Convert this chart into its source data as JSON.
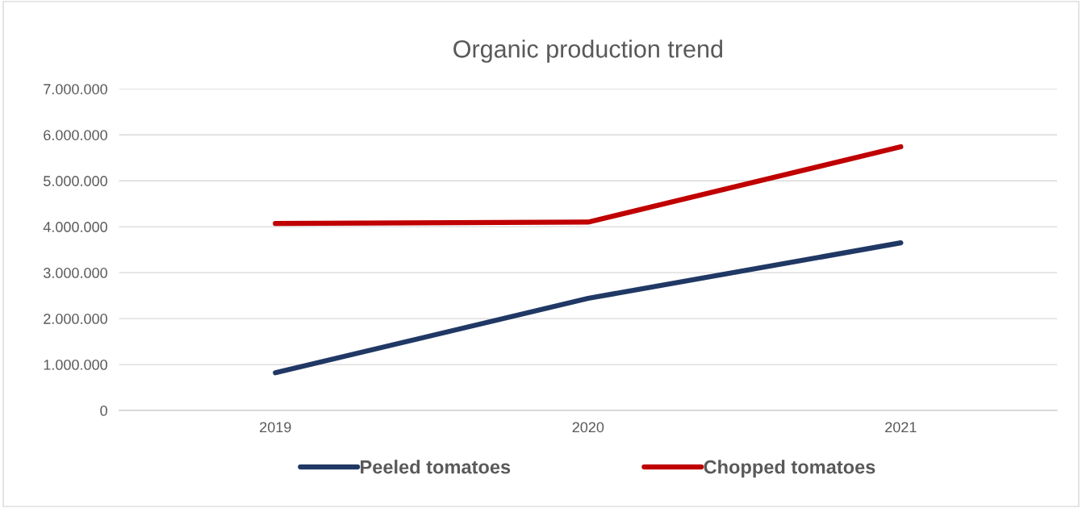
{
  "chart_data": {
    "type": "line",
    "title": "Organic production trend",
    "categories": [
      "2019",
      "2020",
      "2021"
    ],
    "series": [
      {
        "name": "Peeled tomatoes",
        "color": "#203864",
        "values": [
          820000,
          2440000,
          3650000
        ]
      },
      {
        "name": "Chopped tomatoes",
        "color": "#c00000",
        "values": [
          4070000,
          4100000,
          5740000
        ]
      }
    ],
    "ylim": [
      0,
      7000000
    ],
    "yticks": [
      {
        "value": 0,
        "label": "0"
      },
      {
        "value": 1000000,
        "label": "1.000.000"
      },
      {
        "value": 2000000,
        "label": "2.000.000"
      },
      {
        "value": 3000000,
        "label": "3.000.000"
      },
      {
        "value": 4000000,
        "label": "4.000.000"
      },
      {
        "value": 5000000,
        "label": "5.000.000"
      },
      {
        "value": 6000000,
        "label": "6.000.000"
      },
      {
        "value": 7000000,
        "label": "7.000.000"
      }
    ],
    "grid": "y",
    "legend": "bottom",
    "marker": "none",
    "line_style": "solid"
  }
}
